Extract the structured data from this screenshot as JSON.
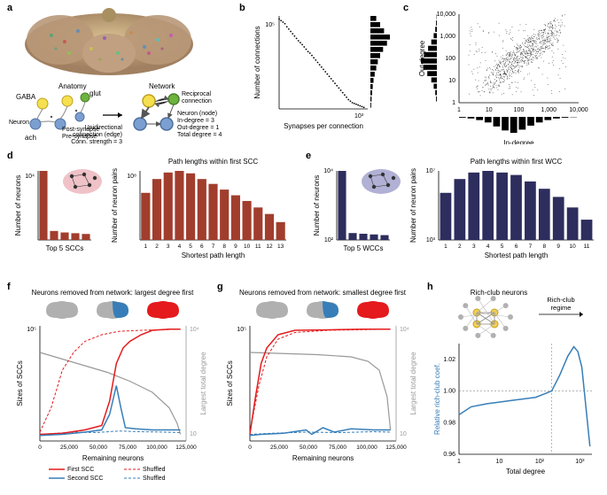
{
  "panels": {
    "a": {
      "label": "a",
      "anatomy_title": "Anatomy",
      "network_title": "Network",
      "gaba_label": "GABA",
      "glut_label": "glut",
      "ach_label": "ach",
      "neuron_label": "Neuron",
      "post_synapse": "Post-synapse",
      "pre_synapse": "Pre-synapse",
      "unidir": "Unidirectional",
      "conn_edge": "connection (edge)",
      "conn_strength": "Conn. strength = 3",
      "reciprocal": "Reciprocal",
      "connection": "connection",
      "neuron_node": "Neuron (node)",
      "in_degree": "In-degree = 3",
      "out_degree": "Out-degree = 1",
      "total_degree": "Total degree = 4",
      "colors": {
        "gaba": "#f5e050",
        "glut": "#6cb33f",
        "ach": "#7b9fd0",
        "arrow": "#333333"
      }
    },
    "b": {
      "label": "b",
      "xlabel": "Synapses per connection",
      "ylabel": "Number of connections",
      "x_ticks": [
        "1",
        "10³"
      ],
      "y_tick": "10⁵",
      "points": [
        [
          1.0,
          5.8
        ],
        [
          1.05,
          5.7
        ],
        [
          1.1,
          5.6
        ],
        [
          1.15,
          5.5
        ],
        [
          1.2,
          5.3
        ],
        [
          1.25,
          5.15
        ],
        [
          1.3,
          5.0
        ],
        [
          1.35,
          4.85
        ],
        [
          1.4,
          4.7
        ],
        [
          1.45,
          4.55
        ],
        [
          1.5,
          4.4
        ],
        [
          1.55,
          4.28
        ],
        [
          1.6,
          4.15
        ],
        [
          1.65,
          4.0
        ],
        [
          1.7,
          3.85
        ],
        [
          1.75,
          3.7
        ],
        [
          1.8,
          3.6
        ],
        [
          1.85,
          3.45
        ],
        [
          1.9,
          3.3
        ],
        [
          1.95,
          3.15
        ],
        [
          2.0,
          3.0
        ],
        [
          2.05,
          2.85
        ],
        [
          2.1,
          2.7
        ],
        [
          2.15,
          2.55
        ],
        [
          2.2,
          2.4
        ],
        [
          2.25,
          2.25
        ],
        [
          2.3,
          2.1
        ],
        [
          2.35,
          1.95
        ],
        [
          2.4,
          1.8
        ],
        [
          2.45,
          1.65
        ],
        [
          2.5,
          1.5
        ],
        [
          2.55,
          1.35
        ],
        [
          2.6,
          1.2
        ],
        [
          2.65,
          1.05
        ],
        [
          2.7,
          0.9
        ],
        [
          2.75,
          0.75
        ],
        [
          2.8,
          0.6
        ],
        [
          2.85,
          0.5
        ],
        [
          2.9,
          0.4
        ],
        [
          2.95,
          0.35
        ],
        [
          3.0,
          0.3
        ],
        [
          3.05,
          0.25
        ],
        [
          3.1,
          0.2
        ],
        [
          3.15,
          0.15
        ],
        [
          3.2,
          0.1
        ]
      ],
      "hist_bars": [
        0.3,
        0.5,
        0.7,
        1.0,
        0.85,
        0.65,
        0.5,
        0.38,
        0.3,
        0.22,
        0.16,
        0.12,
        0.09,
        0.06,
        0.04
      ],
      "color": "#000000"
    },
    "c": {
      "label": "c",
      "xlabel": "In-degree",
      "ylabel": "Out-degree",
      "x_ticks": [
        "1",
        "10",
        "100",
        "1,000",
        "10,000"
      ],
      "y_ticks": [
        "1",
        "10",
        "100",
        "1,000",
        "10,000"
      ],
      "hist_x": [
        0.05,
        0.1,
        0.2,
        0.35,
        0.6,
        0.85,
        1.0,
        0.8,
        0.55,
        0.35,
        0.2,
        0.1,
        0.05,
        0.02
      ],
      "hist_y": [
        0.05,
        0.1,
        0.2,
        0.35,
        0.6,
        0.85,
        1.0,
        0.8,
        0.55,
        0.35,
        0.2,
        0.1,
        0.05,
        0.02
      ],
      "color": "#000000"
    },
    "d": {
      "label": "d",
      "left_title": "Top 5 SCCs",
      "left_ylabel": "Number of neurons",
      "left_ytick": "10⁴",
      "left_bars": [
        4.6,
        0.6,
        0.5,
        0.45,
        0.4
      ],
      "right_title": "Path lengths within first SCC",
      "right_xlabel": "Shortest path length",
      "right_ylabel": "Number of neuron pairs",
      "right_ytick": "10⁸",
      "right_x": [
        1,
        2,
        3,
        4,
        5,
        6,
        7,
        8,
        9,
        10,
        11,
        12,
        13
      ],
      "right_bars": [
        5.8,
        7.5,
        8.3,
        8.5,
        8.2,
        7.5,
        6.9,
        6.2,
        5.5,
        4.8,
        4.0,
        3.2,
        2.2
      ],
      "bar_color": "#a13d2d",
      "icon_bg": "#e8a8b0"
    },
    "e": {
      "label": "e",
      "left_title": "Top 5 WCCs",
      "left_ylabel": "Number of neurons",
      "left_yticks": [
        "10²",
        "10⁴"
      ],
      "left_bars": [
        5.0,
        0.5,
        0.45,
        0.4,
        0.35
      ],
      "right_title": "Path lengths within first WCC",
      "right_xlabel": "Shortest path length",
      "right_ylabel": "Number of neuron pairs",
      "right_yticks": [
        "10³",
        "10⁷"
      ],
      "right_x": [
        1,
        2,
        3,
        4,
        5,
        6,
        7,
        8,
        9,
        10,
        11
      ],
      "right_bars": [
        5.8,
        7.5,
        8.3,
        8.5,
        8.3,
        8.0,
        7.2,
        6.3,
        5.3,
        4.0,
        2.5
      ],
      "bar_color": "#2d2d5e",
      "icon_bg": "#9090c5"
    },
    "f": {
      "label": "f",
      "title": "Neurons removed from network: largest degree first",
      "xlabel": "Remaining neurons",
      "ylabel_left": "Sizes of SCCs",
      "ylabel_right": "Largest total degree",
      "x_ticks": [
        "0",
        "25,000",
        "50,000",
        "75,000",
        "100,000",
        "125,000"
      ],
      "y_left_tick": "10⁵",
      "y_right_tick": "10⁴",
      "y_right_tick2": "10",
      "legend": {
        "first": "First SCC",
        "second": "Second SCC",
        "shuffled": "Shuffled"
      },
      "first_color": "#e41a1c",
      "second_color": "#377eb8",
      "grey_color": "#999999",
      "brain_colors": {
        "grey": "#b0b0b0",
        "blue": "#377eb8",
        "red": "#e41a1c"
      },
      "first_line": [
        [
          0,
          0.3
        ],
        [
          20,
          0.35
        ],
        [
          40,
          0.5
        ],
        [
          55,
          0.7
        ],
        [
          62,
          1.8
        ],
        [
          68,
          3.5
        ],
        [
          74,
          4.2
        ],
        [
          80,
          4.5
        ],
        [
          90,
          4.8
        ],
        [
          100,
          5.0
        ],
        [
          115,
          5.05
        ],
        [
          125,
          5.05
        ]
      ],
      "second_line": [
        [
          0,
          0.25
        ],
        [
          20,
          0.3
        ],
        [
          40,
          0.4
        ],
        [
          55,
          0.5
        ],
        [
          62,
          1.2
        ],
        [
          68,
          2.5
        ],
        [
          72,
          1.5
        ],
        [
          76,
          0.6
        ],
        [
          85,
          0.55
        ],
        [
          100,
          0.5
        ],
        [
          125,
          0.5
        ]
      ],
      "first_shuffled": [
        [
          0,
          0.4
        ],
        [
          10,
          1.5
        ],
        [
          20,
          3.2
        ],
        [
          30,
          4.0
        ],
        [
          40,
          4.5
        ],
        [
          55,
          4.8
        ],
        [
          70,
          4.95
        ],
        [
          90,
          5.0
        ],
        [
          125,
          5.05
        ]
      ],
      "second_shuffled": [
        [
          0,
          0.3
        ],
        [
          15,
          0.35
        ],
        [
          30,
          0.4
        ],
        [
          50,
          0.38
        ],
        [
          70,
          0.45
        ],
        [
          90,
          0.42
        ],
        [
          110,
          0.4
        ],
        [
          125,
          0.38
        ]
      ],
      "grey_line": [
        [
          0,
          4.0
        ],
        [
          20,
          3.7
        ],
        [
          40,
          3.4
        ],
        [
          60,
          3.1
        ],
        [
          80,
          2.7
        ],
        [
          100,
          2.2
        ],
        [
          115,
          1.5
        ],
        [
          122,
          0.8
        ],
        [
          125,
          0.3
        ]
      ]
    },
    "g": {
      "label": "g",
      "title": "Neurons removed from network: smallest degree first",
      "xlabel": "Remaining neurons",
      "ylabel_left": "Sizes of SCCs",
      "ylabel_right": "Largest total degree",
      "x_ticks": [
        "0",
        "25,000",
        "50,000",
        "75,000",
        "100,000",
        "125,000"
      ],
      "first_color": "#e41a1c",
      "second_color": "#377eb8",
      "grey_color": "#999999",
      "first_line": [
        [
          0,
          0.3
        ],
        [
          5,
          2.0
        ],
        [
          10,
          3.5
        ],
        [
          15,
          4.2
        ],
        [
          25,
          4.8
        ],
        [
          40,
          5.0
        ],
        [
          70,
          5.02
        ],
        [
          100,
          5.05
        ],
        [
          125,
          5.05
        ]
      ],
      "second_line": [
        [
          0,
          0.25
        ],
        [
          10,
          0.3
        ],
        [
          30,
          0.35
        ],
        [
          50,
          0.5
        ],
        [
          55,
          0.3
        ],
        [
          65,
          0.6
        ],
        [
          75,
          0.4
        ],
        [
          90,
          0.55
        ],
        [
          110,
          0.5
        ],
        [
          125,
          0.5
        ]
      ],
      "first_shuffled": [
        [
          0,
          0.4
        ],
        [
          8,
          2.5
        ],
        [
          15,
          3.8
        ],
        [
          25,
          4.6
        ],
        [
          40,
          4.9
        ],
        [
          70,
          5.0
        ],
        [
          125,
          5.05
        ]
      ],
      "second_shuffled": [
        [
          0,
          0.3
        ],
        [
          20,
          0.35
        ],
        [
          50,
          0.4
        ],
        [
          80,
          0.38
        ],
        [
          110,
          0.42
        ],
        [
          125,
          0.4
        ]
      ],
      "grey_line": [
        [
          0,
          4.0
        ],
        [
          30,
          3.95
        ],
        [
          60,
          3.9
        ],
        [
          90,
          3.8
        ],
        [
          105,
          3.6
        ],
        [
          115,
          3.2
        ],
        [
          122,
          2.0
        ],
        [
          125,
          0.5
        ]
      ]
    },
    "h": {
      "label": "h",
      "title": "Rich-club neurons",
      "regime_label": "Rich-club",
      "regime_label2": "regime",
      "xlabel": "Total degree",
      "ylabel": "Relative rich-club coef.",
      "x_ticks": [
        "1",
        "10",
        "10²",
        "10³"
      ],
      "y_ticks": [
        "0.96",
        "0.98",
        "1.00",
        "1.02"
      ],
      "line_color": "#377eb8",
      "node_colors": {
        "rich": "#f5d050",
        "outer": "#b0b0b0"
      },
      "line": [
        [
          0,
          0.985
        ],
        [
          0.3,
          0.99
        ],
        [
          0.7,
          0.992
        ],
        [
          1.0,
          0.993
        ],
        [
          1.3,
          0.994
        ],
        [
          1.6,
          0.995
        ],
        [
          1.9,
          0.996
        ],
        [
          2.1,
          0.998
        ],
        [
          2.3,
          1.0
        ],
        [
          2.5,
          1.01
        ],
        [
          2.7,
          1.022
        ],
        [
          2.85,
          1.028
        ],
        [
          2.95,
          1.025
        ],
        [
          3.05,
          1.015
        ],
        [
          3.15,
          0.99
        ],
        [
          3.25,
          0.965
        ]
      ],
      "threshold_x": 2.3,
      "href_y": 1.0
    }
  }
}
